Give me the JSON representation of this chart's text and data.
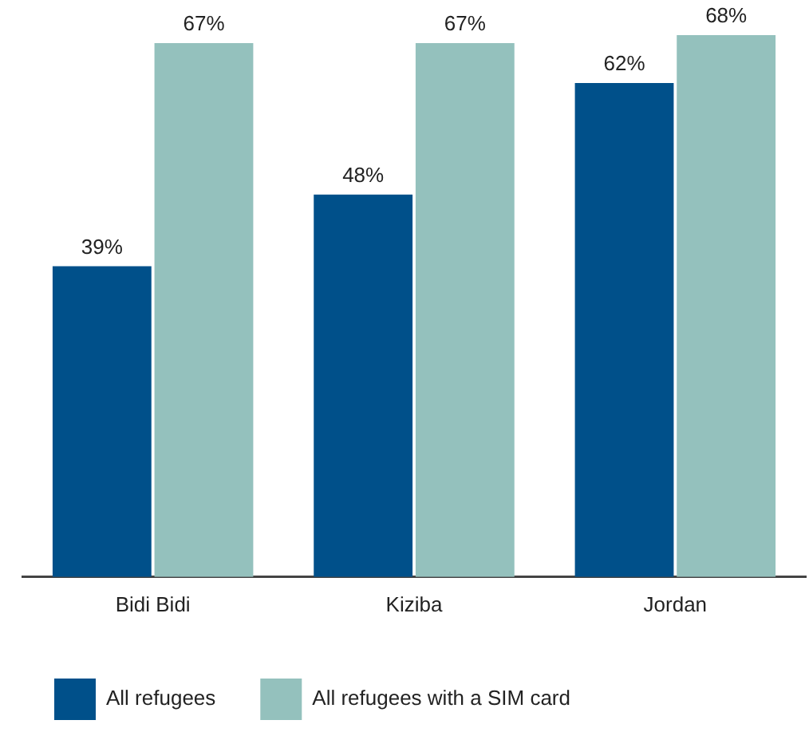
{
  "chart_data": {
    "type": "bar",
    "categories": [
      "Bidi Bidi",
      "Kiziba",
      "Jordan"
    ],
    "series": [
      {
        "name": "All refugees",
        "color": "#00508a",
        "values": [
          39,
          48,
          62
        ],
        "value_labels": [
          "39%",
          "48%",
          "62%"
        ]
      },
      {
        "name": "All refugees with a SIM card",
        "color": "#94c1bd",
        "values": [
          67,
          67,
          68
        ],
        "value_labels": [
          "67%",
          "67%",
          "68%"
        ]
      }
    ],
    "ylim": [
      0,
      68
    ],
    "tick_labels": "x",
    "grid": false,
    "legend": "bottom"
  }
}
